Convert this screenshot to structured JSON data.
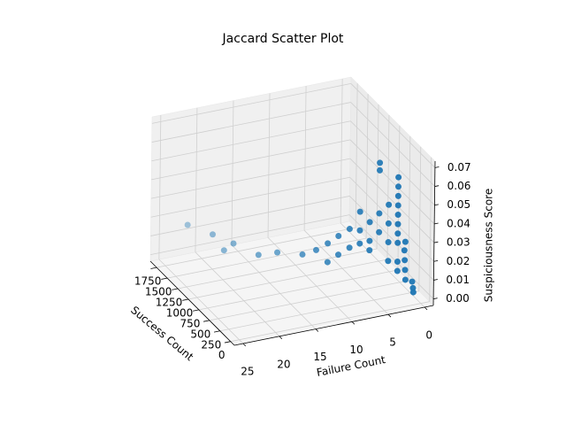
{
  "chart_data": {
    "type": "scatter3d",
    "title": "Jaccard Scatter Plot",
    "x_label": "Failure Count",
    "y_label": "Success Count",
    "z_label": "Suspiciousness Score",
    "color": "#1f77b4",
    "grid": true,
    "x": [
      1,
      1,
      1,
      2,
      2,
      2,
      2,
      2,
      3,
      3,
      3,
      3,
      3,
      3,
      3,
      3,
      3,
      3,
      4,
      4,
      4,
      4,
      5,
      5,
      5,
      5,
      6,
      6,
      6,
      7,
      7,
      7,
      8,
      8,
      9,
      9,
      10,
      10,
      11,
      12,
      14,
      16,
      18,
      19,
      20,
      22
    ],
    "y": [
      20,
      10,
      40,
      30,
      40,
      50,
      60,
      40,
      50,
      50,
      50,
      50,
      50,
      50,
      50,
      50,
      50,
      50,
      100,
      100,
      100,
      100,
      150,
      150,
      150,
      150,
      200,
      200,
      200,
      260,
      260,
      260,
      330,
      330,
      420,
      420,
      500,
      500,
      600,
      750,
      1000,
      1100,
      1350,
      1400,
      1500,
      1750
    ],
    "z": [
      0.005,
      0.003,
      0.008,
      0.01,
      0.015,
      0.02,
      0.025,
      0.03,
      0.015,
      0.02,
      0.03,
      0.035,
      0.04,
      0.045,
      0.05,
      0.055,
      0.06,
      0.065,
      0.02,
      0.03,
      0.04,
      0.05,
      0.072,
      0.068,
      0.045,
      0.035,
      0.04,
      0.03,
      0.025,
      0.045,
      0.035,
      0.028,
      0.035,
      0.025,
      0.03,
      0.02,
      0.025,
      0.015,
      0.02,
      0.015,
      0.012,
      0.01,
      0.012,
      0.008,
      0.015,
      0.016
    ],
    "xlim": [
      -1.2,
      26.2
    ],
    "ylim": [
      -90,
      1900
    ],
    "zlim": [
      -0.0035,
      0.0735
    ],
    "xticks": [
      0,
      5,
      10,
      15,
      20,
      25
    ],
    "yticks": [
      0,
      250,
      500,
      750,
      1000,
      1250,
      1500,
      1750
    ],
    "zticks": [
      {
        "value": 0,
        "label": "0.00"
      },
      {
        "value": 0.01,
        "label": "0.01"
      },
      {
        "value": 0.02,
        "label": "0.02"
      },
      {
        "value": 0.03,
        "label": "0.03"
      },
      {
        "value": 0.04,
        "label": "0.04"
      },
      {
        "value": 0.05,
        "label": "0.05"
      },
      {
        "value": 0.06,
        "label": "0.06"
      },
      {
        "value": 0.07,
        "label": "0.07"
      }
    ]
  }
}
